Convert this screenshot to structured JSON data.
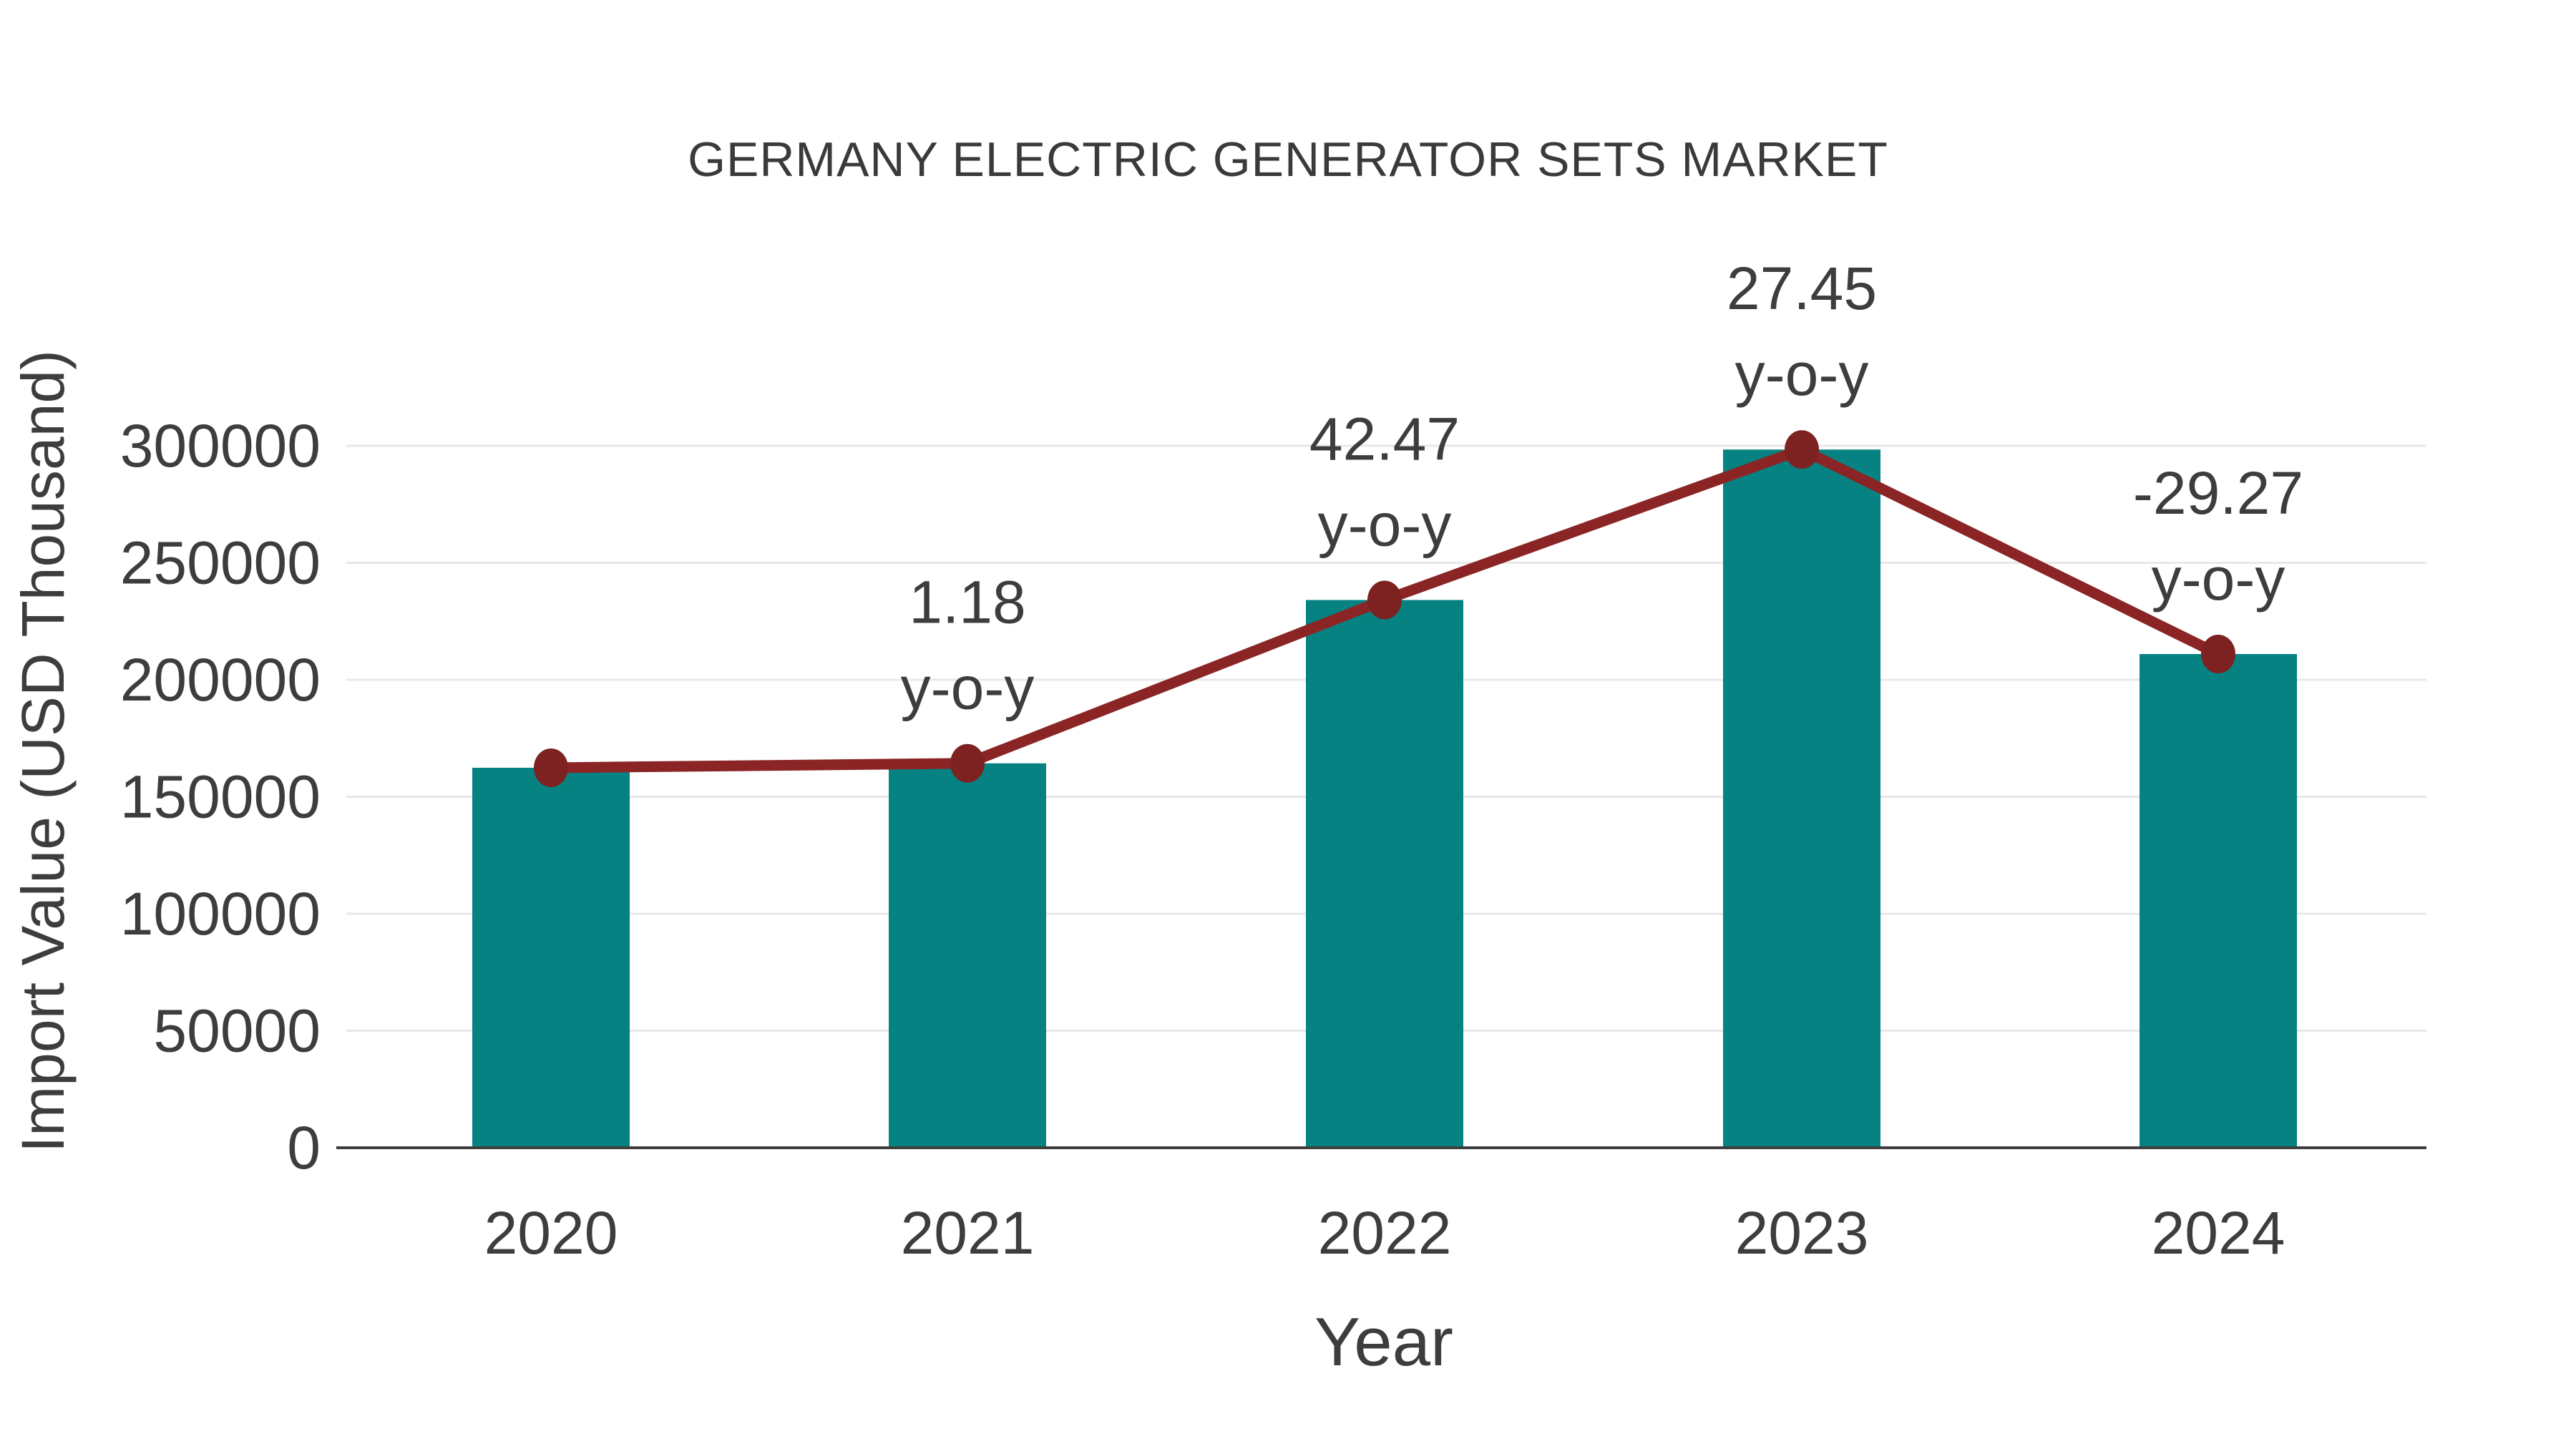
{
  "chart_data": {
    "type": "bar",
    "title": "GERMANY ELECTRIC GENERATOR SETS MARKET",
    "xlabel": "Year",
    "ylabel": "Import Value (USD Thousand)",
    "categories": [
      "2020",
      "2021",
      "2022",
      "2023",
      "2024"
    ],
    "series": [
      {
        "name": "Import Value",
        "type": "bar",
        "color": "#078282",
        "values": [
          162400,
          164300,
          234100,
          298400,
          211000
        ]
      },
      {
        "name": "y-o-y growth",
        "type": "line",
        "color": "#8B2525",
        "marker_color": "#7D2121",
        "plotted_values": [
          162400,
          164300,
          234100,
          298400,
          211000
        ],
        "yoy_percent": [
          null,
          1.18,
          42.47,
          27.45,
          -29.27
        ]
      }
    ],
    "annotations": [
      {
        "category": "2021",
        "line1": "1.18",
        "line2": "y-o-y"
      },
      {
        "category": "2022",
        "line1": "42.47",
        "line2": "y-o-y"
      },
      {
        "category": "2023",
        "line1": "27.45",
        "line2": "y-o-y"
      },
      {
        "category": "2024",
        "line1": "-29.27",
        "line2": "y-o-y"
      }
    ],
    "yticks": [
      0,
      50000,
      100000,
      150000,
      200000,
      250000,
      300000
    ],
    "ytick_labels": [
      "0",
      "50000",
      "100000",
      "150000",
      "200000",
      "250000",
      "300000"
    ],
    "ylim": [
      0,
      330000
    ],
    "grid": true,
    "legend": false,
    "colors": {
      "grid": "#e8e8e8",
      "axis": "#3f3f3f",
      "text": "#3d3d3d",
      "tick_text": "#3d3d3d"
    }
  }
}
